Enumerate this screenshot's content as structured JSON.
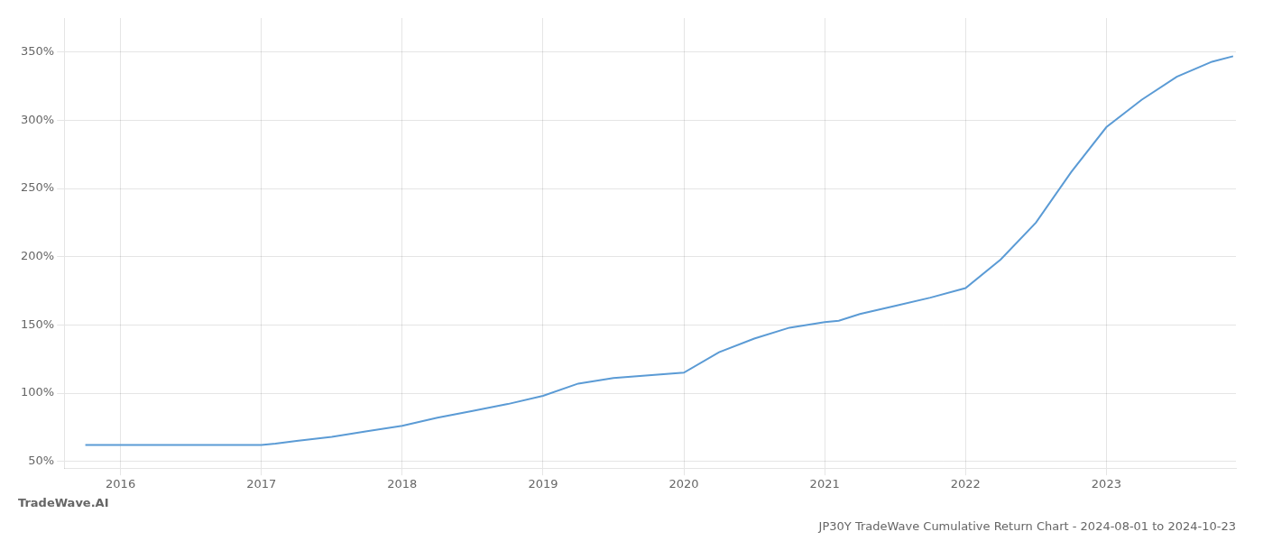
{
  "chart_data": {
    "type": "line",
    "title": "JP30Y TradeWave Cumulative Return Chart - 2024-08-01 to 2024-10-23",
    "annotations": [
      "TradeWave.AI"
    ],
    "x": [
      2015.75,
      2015.9,
      2016.0,
      2016.1,
      2016.25,
      2016.5,
      2016.75,
      2017.0,
      2017.1,
      2017.25,
      2017.5,
      2017.75,
      2018.0,
      2018.25,
      2018.5,
      2018.75,
      2019.0,
      2019.25,
      2019.5,
      2019.75,
      2020.0,
      2020.25,
      2020.5,
      2020.75,
      2021.0,
      2021.1,
      2021.25,
      2021.5,
      2021.75,
      2022.0,
      2022.25,
      2022.5,
      2022.75,
      2023.0,
      2023.25,
      2023.5,
      2023.75,
      2023.9
    ],
    "values": [
      62,
      62,
      62,
      62,
      62,
      62,
      62,
      62,
      63,
      65,
      68,
      72,
      76,
      82,
      87,
      92,
      98,
      107,
      111,
      113,
      115,
      130,
      140,
      148,
      152,
      153,
      158,
      164,
      170,
      177,
      198,
      225,
      262,
      295,
      315,
      332,
      343,
      347
    ],
    "color": "#5b9bd5",
    "xlim": [
      2015.6,
      2023.92
    ],
    "xticks": [
      2016,
      2017,
      2018,
      2019,
      2020,
      2021,
      2022,
      2023
    ],
    "ylim": [
      45,
      375
    ],
    "yticks": [
      {
        "value": 50,
        "label": "50%"
      },
      {
        "value": 100,
        "label": "100%"
      },
      {
        "value": 150,
        "label": "150%"
      },
      {
        "value": 200,
        "label": "200%"
      },
      {
        "value": 250,
        "label": "250%"
      },
      {
        "value": 300,
        "label": "300%"
      },
      {
        "value": 350,
        "label": "350%"
      }
    ],
    "grid": true
  }
}
